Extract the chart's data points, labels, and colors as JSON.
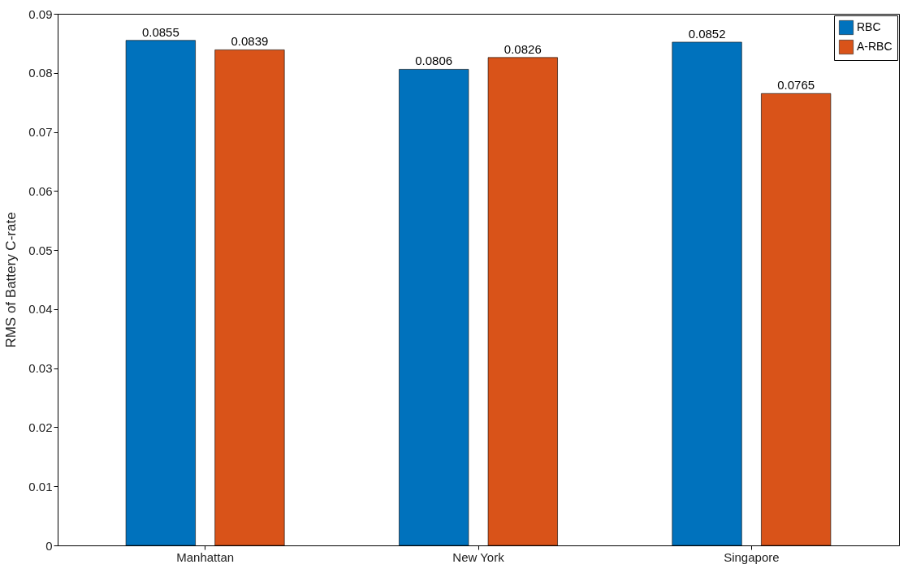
{
  "chart_data": {
    "type": "bar",
    "ylabel": "RMS of Battery C-rate",
    "categories": [
      "Manhattan",
      "New York",
      "Singapore"
    ],
    "series": [
      {
        "name": "RBC",
        "color": "#0072bd",
        "values": [
          0.0855,
          0.0806,
          0.0852
        ]
      },
      {
        "name": "A-RBC",
        "color": "#d95319",
        "values": [
          0.0839,
          0.0826,
          0.0765
        ]
      }
    ],
    "ylim": [
      0,
      0.09
    ],
    "yticks": [
      0,
      0.01,
      0.02,
      0.03,
      0.04,
      0.05,
      0.06,
      0.07,
      0.08,
      0.09
    ],
    "data_labels": true,
    "legend": "top right"
  }
}
